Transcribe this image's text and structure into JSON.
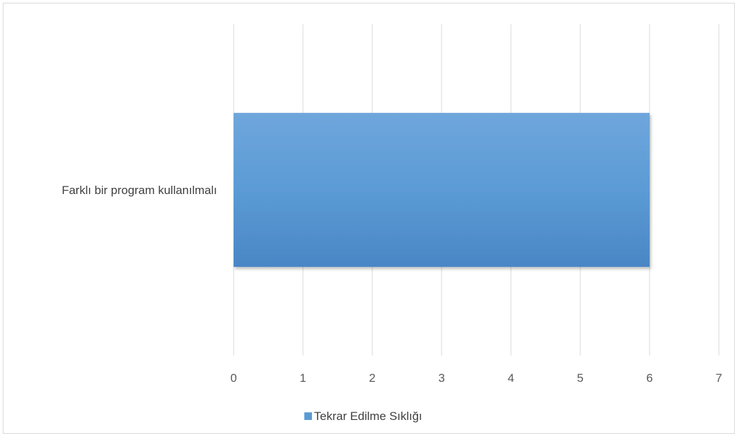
{
  "chart_data": {
    "type": "bar",
    "orientation": "horizontal",
    "categories": [
      "Farklı bir program kullanılmalı"
    ],
    "series": [
      {
        "name": "Tekrar Edilme Sıklığı",
        "values": [
          6
        ]
      }
    ],
    "xlim": [
      0,
      7
    ],
    "xticks": [
      "0",
      "1",
      "2",
      "3",
      "4",
      "5",
      "6",
      "7"
    ],
    "grid": "vertical",
    "legend_position": "bottom",
    "colors": {
      "bar_top": "#6fa6dc",
      "bar_mid": "#5b9bd5",
      "bar_bottom": "#4a86c5",
      "grid": "#d9d9d9"
    }
  }
}
